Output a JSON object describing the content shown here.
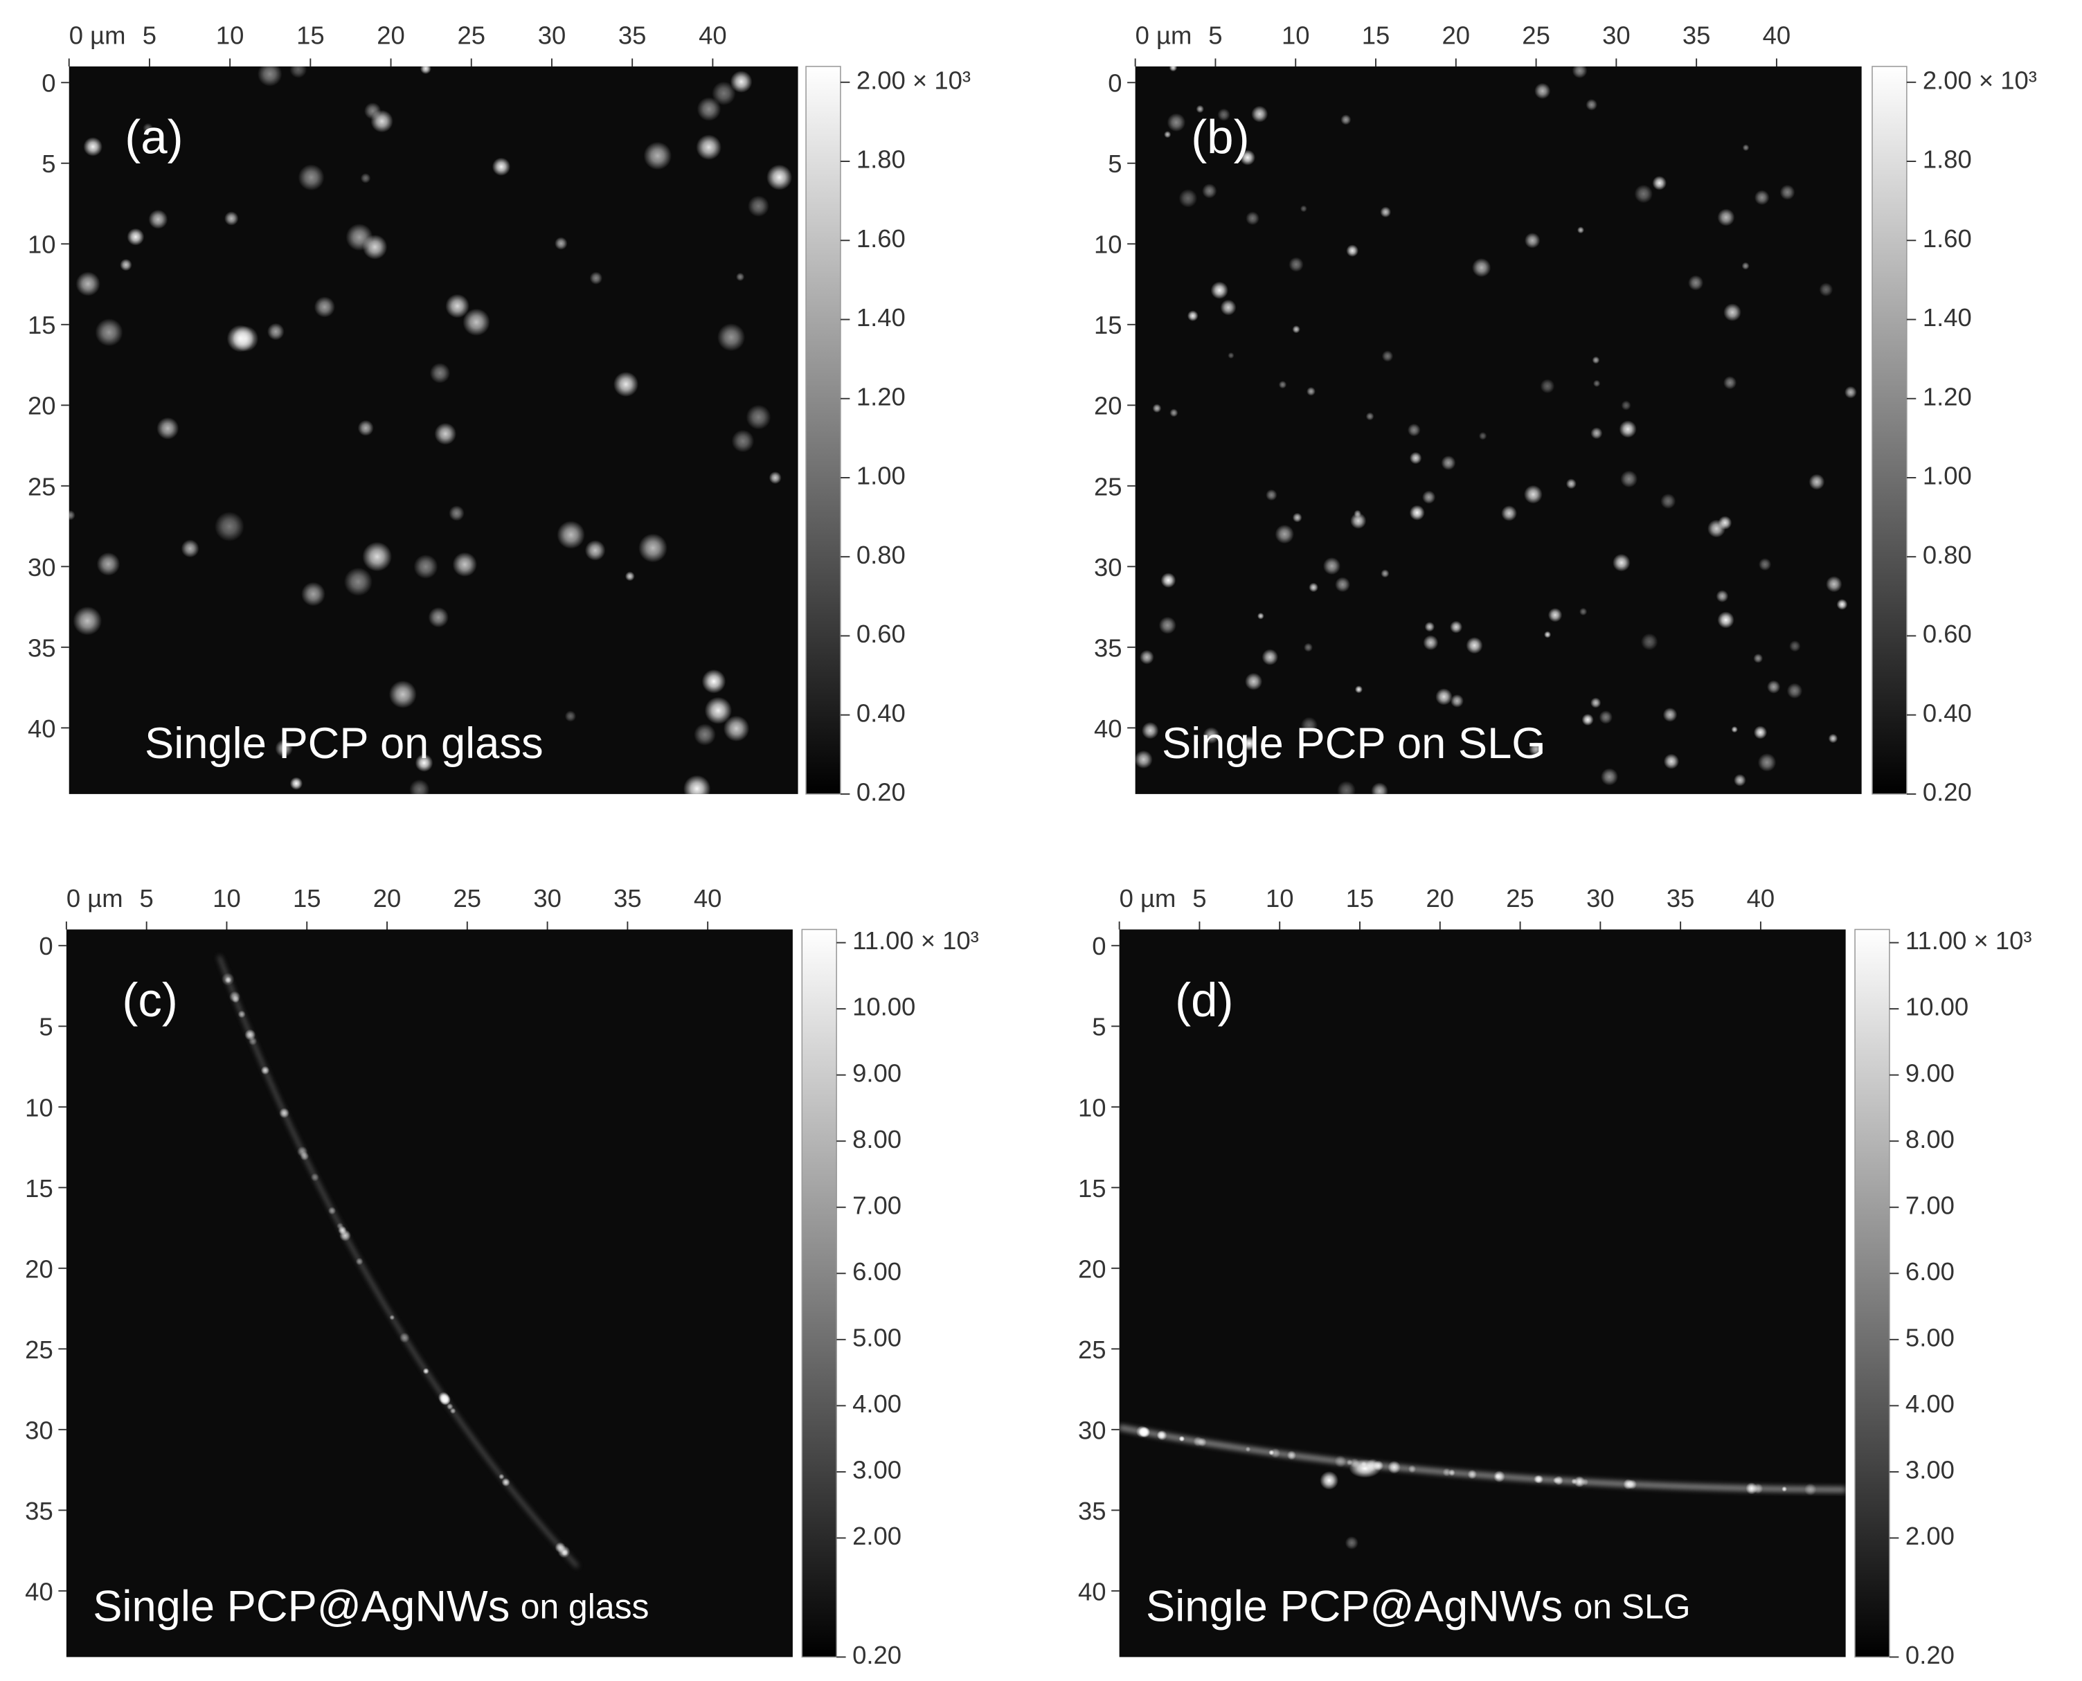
{
  "chart_data": [
    {
      "type": "heatmap",
      "label": "(a)",
      "caption": "Single PCP on glass",
      "colormap": "gray",
      "xlim": [
        0,
        45.3
      ],
      "ylim": [
        -1,
        44.1
      ],
      "xticks": [
        {
          "value": 0,
          "label": "0 µm"
        },
        5,
        10,
        15,
        20,
        25,
        30,
        35,
        40
      ],
      "yticks": [
        0,
        5,
        10,
        15,
        20,
        25,
        30,
        35,
        40
      ],
      "clim": [
        0.2,
        2.04
      ],
      "cticks": [
        {
          "value": 2,
          "label": "2.00 × 10³"
        },
        {
          "value": 1.8,
          "label": "1.80"
        },
        {
          "value": 1.6,
          "label": "1.60"
        },
        {
          "value": 1.4,
          "label": "1.40"
        },
        {
          "value": 1.2,
          "label": "1.20"
        },
        {
          "value": 1,
          "label": "1.00"
        },
        {
          "value": 0.8,
          "label": "0.80"
        },
        {
          "value": 0.6,
          "label": "0.60"
        },
        {
          "value": 0.4,
          "label": "0.40"
        },
        {
          "value": 0.2,
          "label": "0.20"
        }
      ]
    },
    {
      "type": "heatmap",
      "label": "(b)",
      "caption": "Single PCP on SLG",
      "colormap": "gray",
      "xlim": [
        0,
        45.3
      ],
      "ylim": [
        -1,
        44.1
      ],
      "xticks": [
        {
          "value": 0,
          "label": "0 µm"
        },
        5,
        10,
        15,
        20,
        25,
        30,
        35,
        40
      ],
      "yticks": [
        0,
        5,
        10,
        15,
        20,
        25,
        30,
        35,
        40
      ],
      "clim": [
        0.2,
        2.04
      ],
      "cticks": [
        {
          "value": 2,
          "label": "2.00 × 10³"
        },
        {
          "value": 1.8,
          "label": "1.80"
        },
        {
          "value": 1.6,
          "label": "1.60"
        },
        {
          "value": 1.4,
          "label": "1.40"
        },
        {
          "value": 1.2,
          "label": "1.20"
        },
        {
          "value": 1,
          "label": "1.00"
        },
        {
          "value": 0.8,
          "label": "0.80"
        },
        {
          "value": 0.6,
          "label": "0.60"
        },
        {
          "value": 0.4,
          "label": "0.40"
        },
        {
          "value": 0.2,
          "label": "0.20"
        }
      ]
    },
    {
      "type": "heatmap",
      "label": "(c)",
      "caption": "Single PCP@AgNWs",
      "caption_small": "on glass",
      "colormap": "gray",
      "xlim": [
        0,
        45.3
      ],
      "ylim": [
        -1,
        44.1
      ],
      "xticks": [
        {
          "value": 0,
          "label": "0 µm"
        },
        5,
        10,
        15,
        20,
        25,
        30,
        35,
        40
      ],
      "yticks": [
        0,
        5,
        10,
        15,
        20,
        25,
        30,
        35,
        40
      ],
      "clim": [
        0.2,
        11.2
      ],
      "cticks": [
        {
          "value": 11,
          "label": "11.00 × 10³"
        },
        {
          "value": 10,
          "label": "10.00"
        },
        {
          "value": 9,
          "label": "9.00"
        },
        {
          "value": 8,
          "label": "8.00"
        },
        {
          "value": 7,
          "label": "7.00"
        },
        {
          "value": 6,
          "label": "6.00"
        },
        {
          "value": 5,
          "label": "5.00"
        },
        {
          "value": 4,
          "label": "4.00"
        },
        {
          "value": 3,
          "label": "3.00"
        },
        {
          "value": 2,
          "label": "2.00"
        },
        {
          "value": 0.2,
          "label": "0.20"
        }
      ]
    },
    {
      "type": "heatmap",
      "label": "(d)",
      "caption": "Single PCP@AgNWs",
      "caption_small": "on SLG",
      "colormap": "gray",
      "xlim": [
        0,
        45.3
      ],
      "ylim": [
        -1,
        44.1
      ],
      "xticks": [
        {
          "value": 0,
          "label": "0 µm"
        },
        5,
        10,
        15,
        20,
        25,
        30,
        35,
        40
      ],
      "yticks": [
        0,
        5,
        10,
        15,
        20,
        25,
        30,
        35,
        40
      ],
      "clim": [
        0.2,
        11.2
      ],
      "cticks": [
        {
          "value": 11,
          "label": "11.00 × 10³"
        },
        {
          "value": 10,
          "label": "10.00"
        },
        {
          "value": 9,
          "label": "9.00"
        },
        {
          "value": 8,
          "label": "8.00"
        },
        {
          "value": 7,
          "label": "7.00"
        },
        {
          "value": 6,
          "label": "6.00"
        },
        {
          "value": 5,
          "label": "5.00"
        },
        {
          "value": 4,
          "label": "4.00"
        },
        {
          "value": 3,
          "label": "3.00"
        },
        {
          "value": 2,
          "label": "2.00"
        },
        {
          "value": 0.2,
          "label": "0.20"
        }
      ]
    }
  ]
}
